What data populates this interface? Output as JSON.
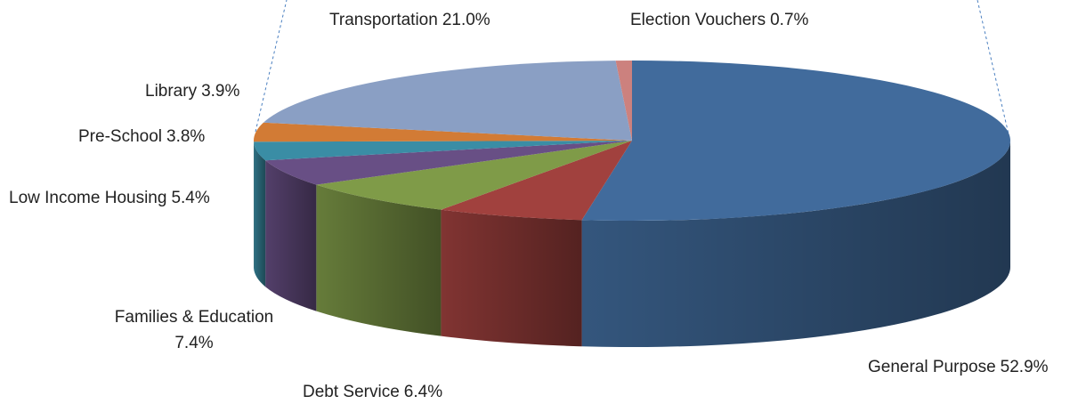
{
  "chart_data": {
    "type": "pie3d",
    "categories": [
      "General Purpose",
      "Debt Service",
      "Families & Education",
      "Low Income Housing",
      "Pre-School",
      "Library",
      "Transportation",
      "Election Vouchers"
    ],
    "values": [
      52.9,
      6.4,
      7.4,
      5.4,
      3.8,
      3.9,
      21.0,
      0.7
    ],
    "value_labels": [
      "52.9%",
      "6.4%",
      "7.4%",
      "5.4%",
      "3.8%",
      "3.9%",
      "21.0%",
      "0.7%"
    ],
    "colors": [
      "#416b9c",
      "#a1413e",
      "#7f9b48",
      "#684f85",
      "#3a8da5",
      "#d27b35",
      "#8a9fc4",
      "#cc817e"
    ]
  }
}
